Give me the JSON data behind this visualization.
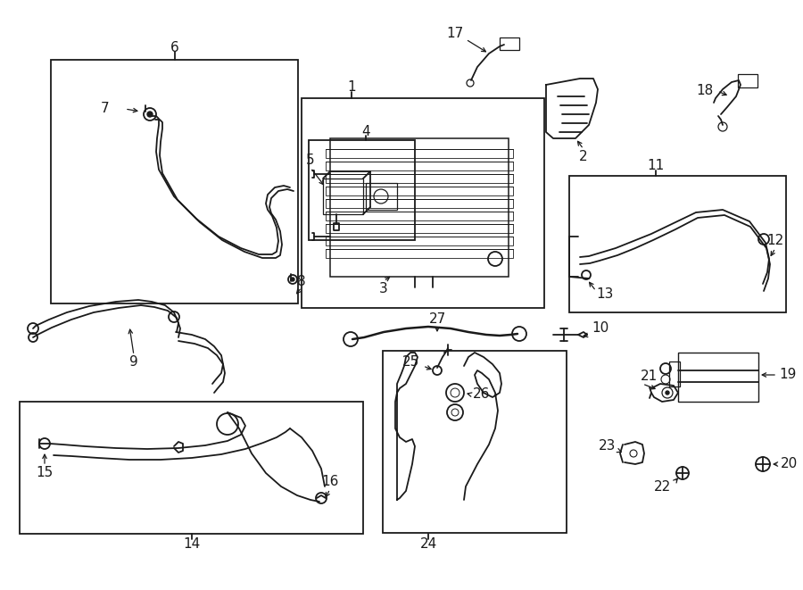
{
  "bg_color": "#ffffff",
  "line_color": "#1a1a1a",
  "text_color": "#1a1a1a",
  "figsize": [
    9.0,
    6.61
  ],
  "dpi": 100,
  "font_size": 10,
  "lw": 1.3
}
